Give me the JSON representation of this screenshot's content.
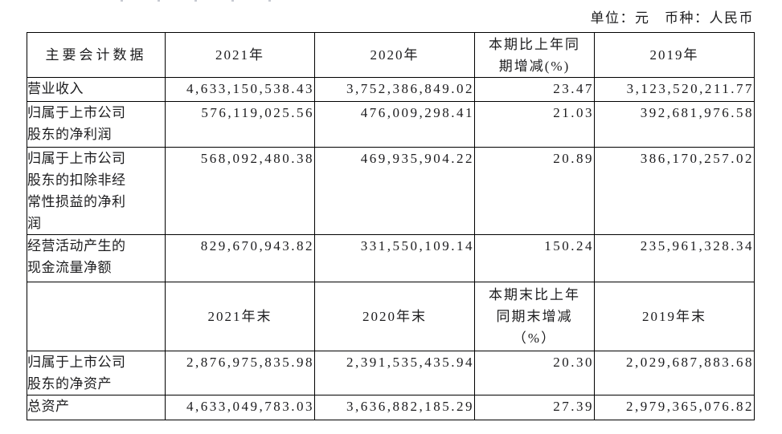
{
  "meta": {
    "unit_label": "单位：元　币种：人民币"
  },
  "table": {
    "header_period": {
      "metric": "主要会计数据",
      "y2021": "2021年",
      "y2020": "2020年",
      "change": "本期比上年同\n期增减(%)",
      "y2019": "2019年"
    },
    "period_rows": [
      {
        "label": "营业收入",
        "y2021": "4,633,150,538.43",
        "y2020": "3,752,386,849.02",
        "change": "23.47",
        "y2019": "3,123,520,211.77"
      },
      {
        "label": "归属于上市公司\n股东的净利润",
        "y2021": "576,119,025.56",
        "y2020": "476,009,298.41",
        "change": "21.03",
        "y2019": "392,681,976.58"
      },
      {
        "label": "归属于上市公司\n股东的扣除非经\n常性损益的净利\n润",
        "y2021": "568,092,480.38",
        "y2020": "469,935,904.22",
        "change": "20.89",
        "y2019": "386,170,257.02"
      },
      {
        "label": "经营活动产生的\n现金流量净额",
        "y2021": "829,670,943.82",
        "y2020": "331,550,109.14",
        "change": "150.24",
        "y2019": "235,961,328.34"
      }
    ],
    "header_yearend": {
      "metric": "",
      "y2021": "2021年末",
      "y2020": "2020年末",
      "change": "本期末比上年\n同期末增减\n（%）",
      "y2019": "2019年末"
    },
    "yearend_rows": [
      {
        "label": "归属于上市公司\n股东的净资产",
        "y2021": "2,876,975,835.98",
        "y2020": "2,391,535,435.94",
        "change": "20.30",
        "y2019": "2,029,687,883.68"
      },
      {
        "label": "总资产",
        "y2021": "4,633,049,783.03",
        "y2020": "3,636,882,185.29",
        "change": "27.39",
        "y2019": "2,979,365,076.82"
      }
    ]
  }
}
